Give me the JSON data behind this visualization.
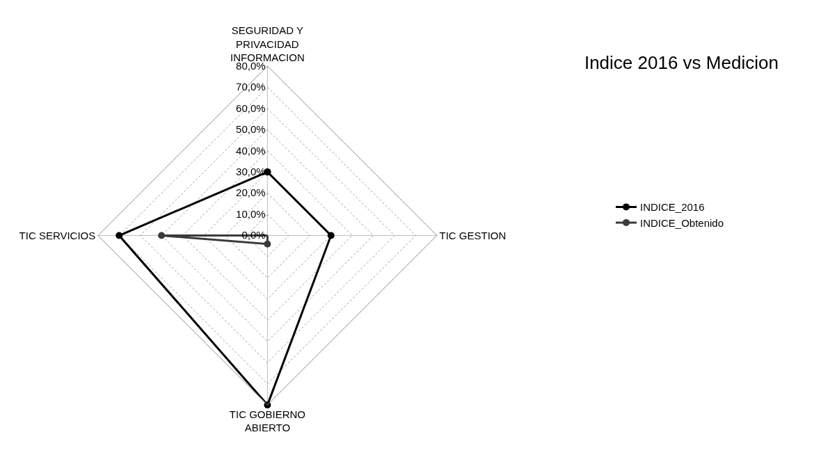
{
  "chart_data": {
    "type": "radar",
    "title": "Indice 2016 vs Medicion",
    "categories": [
      "SEGURIDAD Y PRIVACIDAD INFORMACION",
      "TIC GESTION",
      "TIC GOBIERNO ABIERTO",
      "TIC SERVICIOS"
    ],
    "series": [
      {
        "name": "INDICE_2016",
        "color": "#000000",
        "values": [
          30,
          30,
          80,
          70
        ]
      },
      {
        "name": "INDICE_Obtenido",
        "color": "#3a3a3a",
        "values": [
          0,
          0,
          4,
          50
        ]
      }
    ],
    "ylim": [
      0,
      80
    ],
    "yticks": [
      {
        "value": 0,
        "label": "0,0%"
      },
      {
        "value": 10,
        "label": "10,0%"
      },
      {
        "value": 20,
        "label": "20,0%"
      },
      {
        "value": 30,
        "label": "30,0%"
      },
      {
        "value": 40,
        "label": "40,0%"
      },
      {
        "value": 50,
        "label": "50,0%"
      },
      {
        "value": 60,
        "label": "60,0%"
      },
      {
        "value": 70,
        "label": "70,0%"
      },
      {
        "value": 80,
        "label": "80,0%"
      }
    ],
    "grid": true,
    "legend": "right",
    "marker": "circle",
    "line_style": "solid"
  }
}
